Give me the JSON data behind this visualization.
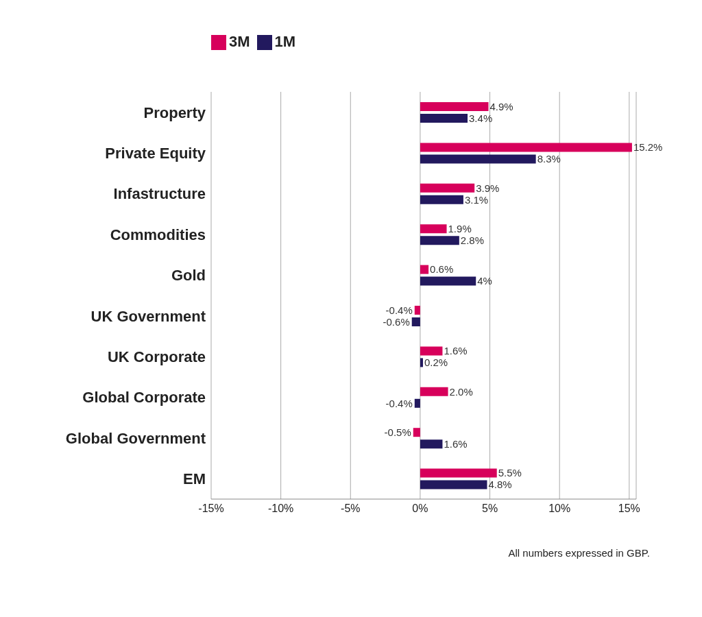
{
  "chart_data": {
    "type": "bar",
    "orientation": "horizontal",
    "categories": [
      "Property",
      "Private Equity",
      "Infastructure",
      "Commodities",
      "Gold",
      "UK Government",
      "UK Corporate",
      "Global Corporate",
      "Global Government",
      "EM"
    ],
    "series": [
      {
        "name": "3M",
        "color": "#d7005b",
        "values": [
          4.9,
          15.2,
          3.9,
          1.9,
          0.6,
          -0.4,
          1.6,
          2.0,
          -0.5,
          5.5
        ],
        "value_labels": [
          "4.9%",
          "15.2%",
          "3.9%",
          "1.9%",
          "0.6%",
          "-0.4%",
          "1.6%",
          "2.0%",
          "-0.5%",
          "5.5%"
        ]
      },
      {
        "name": "1M",
        "color": "#22195e",
        "values": [
          3.4,
          8.3,
          3.1,
          2.8,
          4,
          -0.6,
          0.2,
          -0.4,
          1.6,
          4.8
        ],
        "value_labels": [
          "3.4%",
          "8.3%",
          "3.1%",
          "2.8%",
          "4%",
          "-0.6%",
          "0.2%",
          "-0.4%",
          "1.6%",
          "4.8%"
        ]
      }
    ],
    "xlim": [
      -15,
      15.5
    ],
    "xticks": [
      {
        "value": -15,
        "label": "-15%"
      },
      {
        "value": -10,
        "label": "-10%"
      },
      {
        "value": -5,
        "label": "-5%"
      },
      {
        "value": 0,
        "label": "0%"
      },
      {
        "value": 5,
        "label": "5%"
      },
      {
        "value": 10,
        "label": "10%"
      },
      {
        "value": 15,
        "label": "15%"
      }
    ],
    "grid": "x",
    "legend": "top left",
    "annotations": [
      "All numbers expressed in GBP."
    ]
  }
}
